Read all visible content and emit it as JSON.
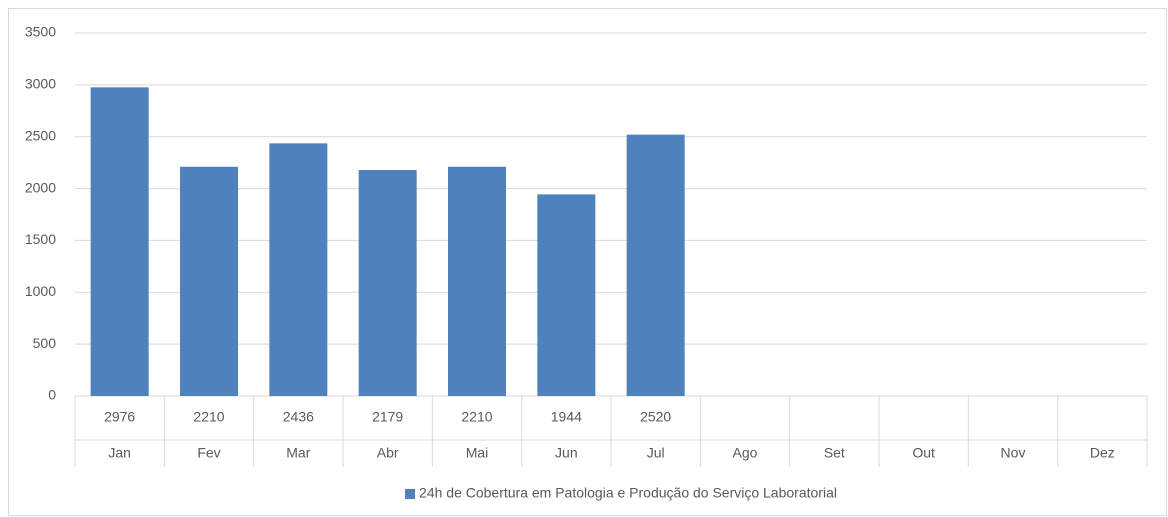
{
  "chart_data": {
    "type": "bar",
    "categories": [
      "Jan",
      "Fev",
      "Mar",
      "Abr",
      "Mai",
      "Jun",
      "Jul",
      "Ago",
      "Set",
      "Out",
      "Nov",
      "Dez"
    ],
    "series": [
      {
        "name": "24h de Cobertura em Patologia e Produção do Serviço Laboratorial",
        "color": "#4f81bd",
        "values": [
          2976,
          2210,
          2436,
          2179,
          2210,
          1944,
          2520,
          null,
          null,
          null,
          null,
          null
        ]
      }
    ],
    "ylim": [
      0,
      3500
    ],
    "yticks": [
      0,
      500,
      1000,
      1500,
      2000,
      2500,
      3000,
      3500
    ],
    "grid": true,
    "legend": "bottom"
  }
}
